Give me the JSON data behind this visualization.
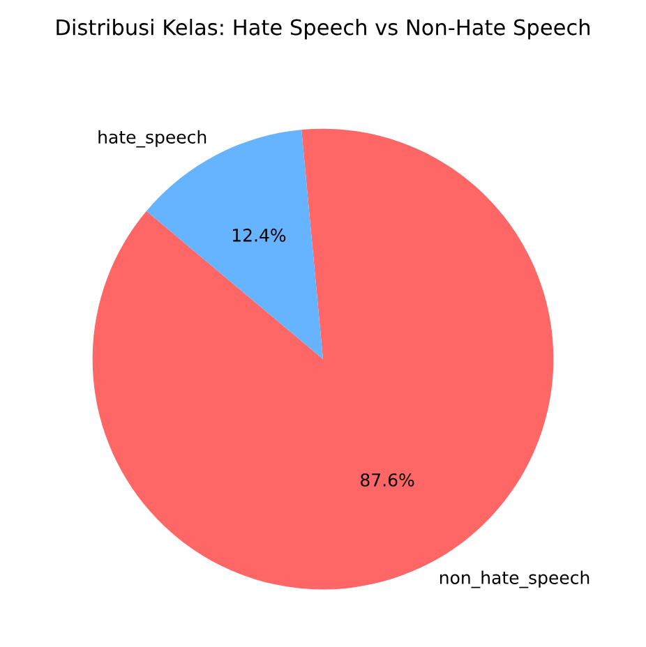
{
  "chart_data": {
    "type": "pie",
    "title": "Distribusi Kelas: Hate Speech vs Non-Hate Speech",
    "categories": [
      "non_hate_speech",
      "hate_speech"
    ],
    "values": [
      87.6,
      12.4
    ],
    "value_labels": [
      "87.6%",
      "12.4%"
    ],
    "colors": [
      "#ff6666",
      "#66b3ff"
    ]
  }
}
